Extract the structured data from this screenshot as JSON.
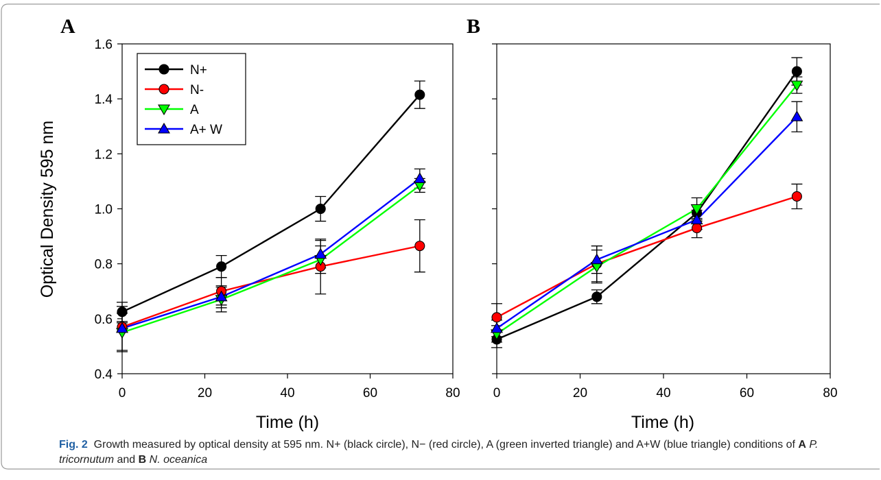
{
  "figure": {
    "caption": {
      "label": "Fig. 2",
      "t1": "Growth measured by optical density at 595 nm. N+ (black circle), N− (red circle), A (green inverted triangle) and A+W (blue triangle) conditions of ",
      "b1": "A",
      "sp1": " ",
      "i1": "P. tricornutum",
      "t2": " and ",
      "b2": "B",
      "sp2": " ",
      "i2": "N. oceanica"
    }
  },
  "chart_data": [
    {
      "type": "line",
      "panel_label": "A",
      "xlabel": "Time (h)",
      "ylabel": "Optical Density 595 nm",
      "xlim": [
        0,
        80
      ],
      "ylim": [
        0.4,
        1.6
      ],
      "x_ticks": [
        "0",
        "20",
        "40",
        "60",
        "80"
      ],
      "y_ticks": [
        "0.4",
        "0.6",
        "0.8",
        "1.0",
        "1.2",
        "1.4",
        "1.6"
      ],
      "legend_position": "top-left",
      "grid": false,
      "x": [
        0,
        24,
        48,
        72
      ],
      "series": [
        {
          "name": "N+",
          "marker": "circle",
          "color": "#000000",
          "values": [
            0.625,
            0.79,
            1.0,
            1.415
          ],
          "err": [
            0.035,
            0.04,
            0.045,
            0.05
          ]
        },
        {
          "name": "N-",
          "marker": "circle",
          "color": "#ff0000",
          "values": [
            0.57,
            0.7,
            0.79,
            0.865
          ],
          "err": [
            0.015,
            0.05,
            0.1,
            0.095
          ]
        },
        {
          "name": "A",
          "marker": "triangle-down",
          "color": "#00ff00",
          "values": [
            0.55,
            0.67,
            0.815,
            1.085
          ],
          "err": [
            0.07,
            0.045,
            0.05,
            0.025
          ]
        },
        {
          "name": "A+ W",
          "marker": "triangle-up",
          "color": "#0000ff",
          "values": [
            0.565,
            0.68,
            0.835,
            1.11
          ],
          "err": [
            0.08,
            0.04,
            0.05,
            0.035
          ]
        }
      ]
    },
    {
      "type": "line",
      "panel_label": "B",
      "xlabel": "Time (h)",
      "ylabel": "",
      "xlim": [
        0,
        80
      ],
      "ylim": [
        0.4,
        1.6
      ],
      "x_ticks": [
        "0",
        "20",
        "40",
        "60",
        "80"
      ],
      "y_ticks": [],
      "legend_position": "",
      "grid": false,
      "x": [
        0,
        24,
        48,
        72
      ],
      "series": [
        {
          "name": "N+",
          "marker": "circle",
          "color": "#000000",
          "values": [
            0.525,
            0.68,
            0.985,
            1.5
          ],
          "err": [
            0.03,
            0.025,
            0.03,
            0.05
          ]
        },
        {
          "name": "N-",
          "marker": "circle",
          "color": "#ff0000",
          "values": [
            0.605,
            0.8,
            0.93,
            1.045
          ],
          "err": [
            0.05,
            0.065,
            0.035,
            0.045
          ]
        },
        {
          "name": "A",
          "marker": "triangle-down",
          "color": "#00ff00",
          "values": [
            0.545,
            0.79,
            1.0,
            1.45
          ],
          "err": [
            0.03,
            0.06,
            0.04,
            0.03
          ]
        },
        {
          "name": "A+ W",
          "marker": "triangle-up",
          "color": "#0000ff",
          "values": [
            0.565,
            0.815,
            0.96,
            1.335
          ],
          "err": [
            0.03,
            0.05,
            0.035,
            0.055
          ]
        }
      ]
    }
  ]
}
